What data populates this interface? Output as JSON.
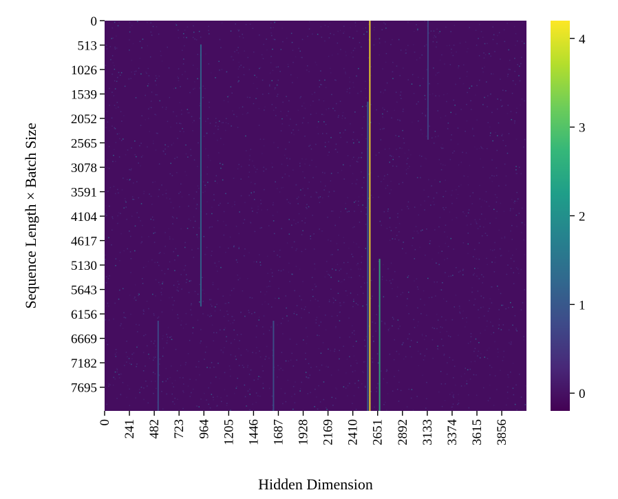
{
  "chart_data": {
    "type": "heatmap",
    "title": "",
    "xlabel": "Hidden Dimension",
    "ylabel": "Sequence Length × Batch Size",
    "colormap": "viridis",
    "x_range": [
      0,
      4096
    ],
    "y_range": [
      0,
      8192
    ],
    "x_ticks": [
      0,
      241,
      482,
      723,
      964,
      1205,
      1446,
      1687,
      1928,
      2169,
      2410,
      2651,
      2892,
      3133,
      3374,
      3615,
      3856
    ],
    "y_ticks": [
      0,
      513,
      1026,
      1539,
      2052,
      2565,
      3078,
      3591,
      4104,
      4617,
      5130,
      5643,
      6156,
      6669,
      7182,
      7695
    ],
    "colorbar": {
      "min": -0.2,
      "max": 4.2,
      "ticks": [
        0,
        1,
        2,
        3,
        4
      ]
    },
    "background_value": -0.05,
    "outlier_channels": [
      {
        "x": 2575,
        "peak": 4.2,
        "y_from": 0,
        "y_to": 8192
      },
      {
        "x": 2555,
        "peak": 1.2,
        "y_from": 1700,
        "y_to": 8192
      },
      {
        "x": 2670,
        "peak": 2.6,
        "y_from": 5000,
        "y_to": 8192
      },
      {
        "x": 935,
        "peak": 1.3,
        "y_from": 500,
        "y_to": 6000
      },
      {
        "x": 1640,
        "peak": 0.9,
        "y_from": 6300,
        "y_to": 8192
      },
      {
        "x": 520,
        "peak": 0.8,
        "y_from": 6300,
        "y_to": 8192
      },
      {
        "x": 3140,
        "peak": 0.7,
        "y_from": 0,
        "y_to": 2500
      }
    ]
  }
}
